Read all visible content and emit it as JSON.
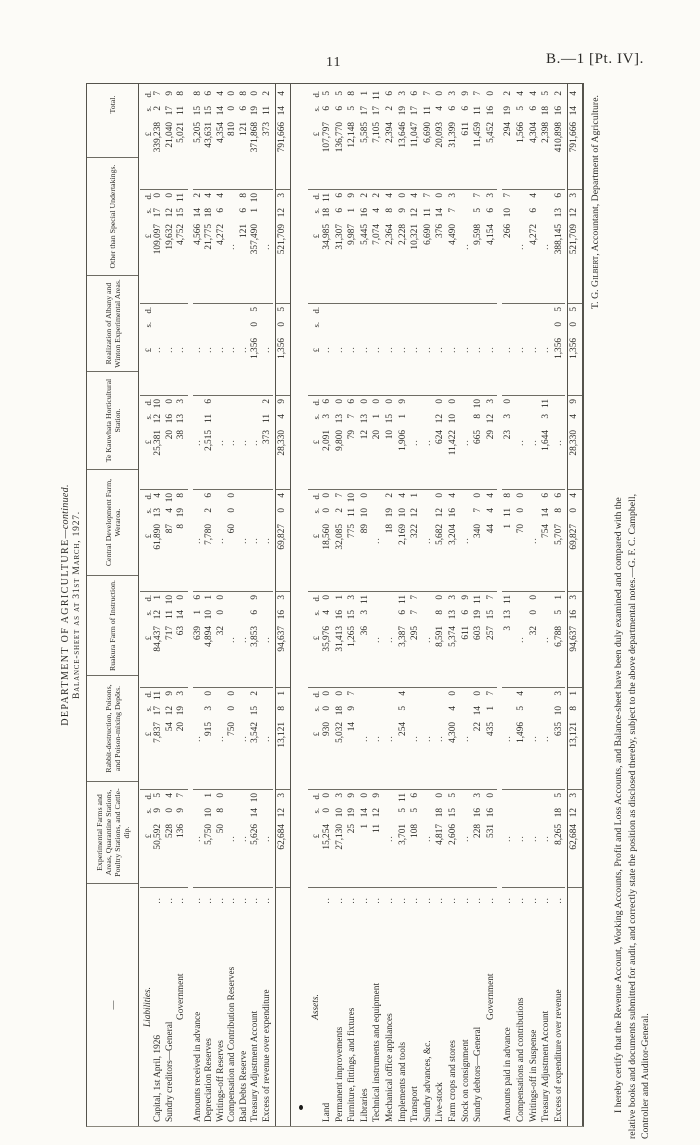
{
  "page": {
    "number": "11",
    "paper_ref": "B.—1 [Pt. IV]."
  },
  "sheet": {
    "title_main": "DEPARTMENT OF AGRICULTURE",
    "title_continued": "—continued.",
    "subtitle": "Balance-sheet as at 31st March, 1927."
  },
  "table": {
    "stub_header": "—",
    "money_header": {
      "pound": "£",
      "s": "s.",
      "d": "d."
    },
    "col_headers": [
      "Experimental Farms and Areas, Quarantine Stations, Poultry Stations, and Cattle-dip.",
      "Rabbit-destruction, Poisons, and Poison-mixing Depôts.",
      "Ruakura Farm of Instruction.",
      "Central Development Farm, Weraroa.",
      "Te Kauwhata Horticultural Station.",
      "Realization of Albany and Winton Experimental Areas.",
      "Other than Special Undertakings.",
      "Total."
    ],
    "liabilities": {
      "section_label": "Liabilities.",
      "rows": [
        {
          "label": "Capital, 1st April, 1926",
          "indent": false,
          "gap": false,
          "values": [
            "50,592 9 5",
            "7,837 17 11",
            "84,437 12 1",
            "61,890 13 4",
            "25,381 12 10",
            "..",
            "109,097 17 0",
            "339,238 2 7"
          ]
        },
        {
          "label": "Sundry creditors—General",
          "indent": false,
          "gap": false,
          "values": [
            "528 0 4",
            "54 12 9",
            "717 11 10",
            "87 4 10",
            "20 16 0",
            "..",
            "19,632 12 0",
            "21,040 17 9"
          ]
        },
        {
          "label": "Government",
          "indent": true,
          "gap": false,
          "values": [
            "136 9 7",
            "20 19 3",
            "63 14 0",
            "8 19 8",
            "38 13 3",
            "..",
            "4,752 15 11",
            "5,021 11 8"
          ]
        },
        {
          "label": "Amounts received in advance",
          "indent": false,
          "gap": true,
          "values": [
            "..",
            "..",
            "639 1 6",
            "..",
            "..",
            "..",
            "4,566 14 2",
            "5,205 15 8"
          ]
        },
        {
          "label": "Depreciation Reserves",
          "indent": false,
          "gap": false,
          "values": [
            "5,750 10 1",
            "915 3 0",
            "4,894 10 1",
            "7,780 2 6",
            "2,515 11 6",
            "..",
            "21,775 18 4",
            "43,631 15 6"
          ]
        },
        {
          "label": "Writings-off Reserves",
          "indent": false,
          "gap": false,
          "values": [
            "50 8 0",
            "..",
            "32 0 0",
            "..",
            "..",
            "..",
            "4,272 6 4",
            "4,354 14 4"
          ]
        },
        {
          "label": "Compensation and Contribution Reserves",
          "indent": false,
          "gap": false,
          "values": [
            "..",
            "750 0 0",
            "..",
            "60 0 0",
            "..",
            "..",
            "..",
            "810 0 0"
          ]
        },
        {
          "label": "Bad Debts Reserve",
          "indent": false,
          "gap": false,
          "values": [
            "..",
            "..",
            "..",
            "..",
            "..",
            "..",
            "121 6 8",
            "121 6 8"
          ]
        },
        {
          "label": "Treasury Adjustment Account",
          "indent": false,
          "gap": false,
          "values": [
            "5,626 14 10",
            "3,542 15 2",
            "3,853 6 9",
            "..",
            "..",
            "1,356 0 5",
            "357,490 1 10",
            "371,868 19 0"
          ]
        },
        {
          "label": "Excess of revenue over expenditure",
          "indent": false,
          "gap": false,
          "values": [
            "..",
            "..",
            "..",
            "..",
            "373 11 2",
            "..",
            "..",
            "373 11 2"
          ]
        }
      ],
      "total": [
        "62,684 12 3",
        "13,121 8 1",
        "94,637 16 3",
        "69,827 0 4",
        "28,330 4 9",
        "1,356 0 5",
        "521,709 12 3",
        "791,666 14 4"
      ]
    },
    "assets": {
      "section_label": "Assets.",
      "rows": [
        {
          "label": "Land",
          "indent": false,
          "gap": false,
          "values": [
            "15,254 0 0",
            "930 0 0",
            "35,976 4 0",
            "18,560 0 0",
            "2,091 3 6",
            "..",
            "34,985 18 11",
            "107,797 6 5"
          ]
        },
        {
          "label": "Permanent improvements",
          "indent": false,
          "gap": false,
          "values": [
            "27,130 10 3",
            "5,032 18 0",
            "31,413 16 1",
            "32,085 2 7",
            "9,800 13 0",
            "..",
            "31,307 6 6",
            "136,770 6 5"
          ]
        },
        {
          "label": "Furniture, fittings, and fixtures",
          "indent": false,
          "gap": false,
          "values": [
            "25 19 9",
            "14 9 7",
            "1,265 15 3",
            "775 11 10",
            "79 7 6",
            "..",
            "9,987 1 9",
            "12,148 5 8"
          ]
        },
        {
          "label": "Libraries",
          "indent": false,
          "gap": false,
          "values": [
            "1 14 0",
            "..",
            "36 3 11",
            "89 10 0",
            "12 13 0",
            "..",
            "5,445 16 2",
            "5,585 17 1"
          ]
        },
        {
          "label": "Technical instruments and equipment",
          "indent": false,
          "gap": false,
          "values": [
            "11 12 9",
            "..",
            "..",
            "..",
            "20 1 0",
            "..",
            "7,074 4 2",
            "7,105 17 11"
          ]
        },
        {
          "label": "Mechanical office appliances",
          "indent": false,
          "gap": false,
          "values": [
            "..",
            "..",
            "..",
            "18 19 2",
            "10 15 0",
            "..",
            "2,364 8 4",
            "2,394 2 6"
          ]
        },
        {
          "label": "Implements and tools",
          "indent": false,
          "gap": false,
          "values": [
            "3,701 5 11",
            "254 5 4",
            "3,387 6 11",
            "2,169 10 4",
            "1,906 1 9",
            "..",
            "2,228 9 0",
            "13,646 19 3"
          ]
        },
        {
          "label": "Transport",
          "indent": false,
          "gap": false,
          "values": [
            "108 5 6",
            "..",
            "295 7 7",
            "322 12 1",
            "..",
            "..",
            "10,321 12 4",
            "11,047 17 6"
          ]
        },
        {
          "label": "Sundry advances, &c.",
          "indent": false,
          "gap": false,
          "values": [
            "..",
            "..",
            "..",
            "..",
            "..",
            "..",
            "6,690 11 7",
            "6,690 11 7"
          ]
        },
        {
          "label": "Live-stock",
          "indent": false,
          "gap": false,
          "values": [
            "4,817 18 0",
            "..",
            "8,591 8 0",
            "5,682 12 0",
            "624 12 0",
            "..",
            "376 14 0",
            "20,093 4 0"
          ]
        },
        {
          "label": "Farm crops and stores",
          "indent": false,
          "gap": false,
          "values": [
            "2,606 15 5",
            "4,300 4 0",
            "5,374 13 3",
            "3,204 16 4",
            "11,422 10 0",
            "..",
            "4,490 7 3",
            "31,399 6 3"
          ]
        },
        {
          "label": "Stock on consignment",
          "indent": false,
          "gap": false,
          "values": [
            "..",
            "..",
            "611 6 9",
            "..",
            "..",
            "..",
            "..",
            "611 6 9"
          ]
        },
        {
          "label": "Sundry debtors—General",
          "indent": false,
          "gap": false,
          "values": [
            "228 16 3",
            "22 14 0",
            "603 19 11",
            "340 7 0",
            "665 8 10",
            "..",
            "9,598 5 7",
            "11,459 11 7"
          ]
        },
        {
          "label": "Government",
          "indent": true,
          "gap": false,
          "values": [
            "531 16 0",
            "435 1 7",
            "257 15 7",
            "44 4 4",
            "29 12 3",
            "..",
            "4,154 6 3",
            "5,452 16 0"
          ]
        },
        {
          "label": "Amounts paid in advance",
          "indent": false,
          "gap": true,
          "values": [
            "..",
            "..",
            "3 13 11",
            "1 11 8",
            "23 3 0",
            "..",
            "266 10 7",
            "294 19 2"
          ]
        },
        {
          "label": "Compensations and contributions",
          "indent": false,
          "gap": false,
          "values": [
            "..",
            "1,496 5 4",
            "..",
            "70 0 0",
            "..",
            "..",
            "..",
            "1,566 5 4"
          ]
        },
        {
          "label": "Writings-off in Suspense",
          "indent": false,
          "gap": false,
          "values": [
            "..",
            "..",
            "32 0 0",
            "..",
            "..",
            "..",
            "4,272 6 4",
            "4,304 6 4"
          ]
        },
        {
          "label": "Treasury Adjustment Account",
          "indent": false,
          "gap": false,
          "values": [
            "..",
            "..",
            "..",
            "754 14 6",
            "1,644 3 11",
            "..",
            "..",
            "2,398 18 5"
          ]
        },
        {
          "label": "Excess of expenditure over revenue",
          "indent": false,
          "gap": false,
          "values": [
            "8,265 18 5",
            "635 10 3",
            "6,788 5 1",
            "5,707 8 6",
            "..",
            "1,356 0 5",
            "388,145 13 6",
            "410,898 16 2"
          ]
        }
      ],
      "total": [
        "62,684 12 3",
        "13,121 8 1",
        "94,637 16 3",
        "69,827 0 4",
        "28,330 4 9",
        "1,356 0 5",
        "521,709 12 3",
        "791,666 14 4"
      ]
    }
  },
  "footer": {
    "signature_name": "T. G. Gilbert,",
    "signature_rest": " Accountant, Department of Agriculture.",
    "cert_line1": "I hereby certify that the Revenue Account, Working Accounts, Profit and Loss Accounts, and Balance-sheet have been duly examined and compared with the",
    "cert_line2": "relative books and documents submitted for audit, and correctly state the position as disclosed thereby, subject to the above departmental notes.—G. F. C. Campbell,",
    "cert_line3": "Controller and Auditor-General."
  }
}
